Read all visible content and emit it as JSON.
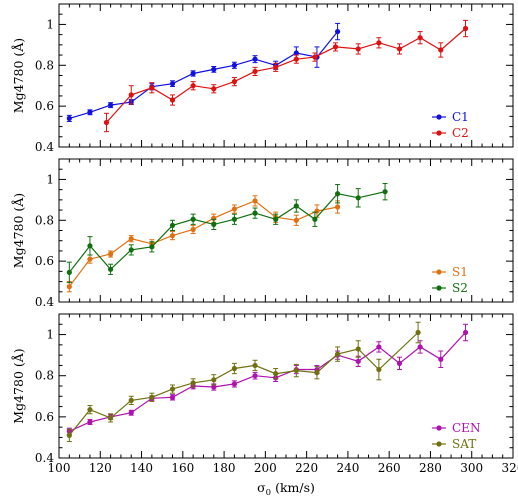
{
  "chart_data": {
    "type": "line",
    "x_axis": {
      "label_main": "σ",
      "label_sub": "0",
      "label_rest": " (km/s)",
      "range": [
        100,
        320
      ],
      "ticks": [
        100,
        120,
        140,
        160,
        180,
        200,
        220,
        240,
        260,
        280,
        300,
        320
      ],
      "minor_step": 5
    },
    "y_label": "Mg4780 (Å)",
    "panels": [
      {
        "ylim": [
          0.4,
          1.1
        ],
        "yticks": [
          0.4,
          0.6,
          0.8,
          1.0
        ],
        "ytick_labels": [
          "0.4",
          "0.6",
          "0.8",
          "1"
        ],
        "legend_position": "bottom-right",
        "series": [
          {
            "name": "C1",
            "color": "#1010e0",
            "x": [
              105,
              115,
              125,
              135,
              145,
              155,
              165,
              175,
              185,
              195,
              205,
              215,
              225,
              235
            ],
            "y": [
              0.54,
              0.57,
              0.605,
              0.62,
              0.695,
              0.71,
              0.76,
              0.78,
              0.8,
              0.83,
              0.8,
              0.86,
              0.84,
              0.965
            ],
            "err": [
              0.015,
              0.012,
              0.012,
              0.012,
              0.015,
              0.014,
              0.013,
              0.014,
              0.015,
              0.017,
              0.02,
              0.03,
              0.05,
              0.04
            ]
          },
          {
            "name": "C2",
            "color": "#e01010",
            "x": [
              123,
              135,
              145,
              155,
              165,
              175,
              185,
              195,
              205,
              215,
              224,
              234,
              245,
              255,
              265,
              275,
              285,
              297
            ],
            "y": [
              0.52,
              0.655,
              0.69,
              0.63,
              0.7,
              0.685,
              0.72,
              0.77,
              0.79,
              0.83,
              0.84,
              0.89,
              0.88,
              0.91,
              0.88,
              0.935,
              0.875,
              0.98
            ],
            "err": [
              0.045,
              0.045,
              0.025,
              0.025,
              0.02,
              0.02,
              0.02,
              0.02,
              0.02,
              0.02,
              0.02,
              0.02,
              0.025,
              0.025,
              0.025,
              0.03,
              0.035,
              0.04
            ]
          }
        ]
      },
      {
        "ylim": [
          0.4,
          1.1
        ],
        "yticks": [
          0.4,
          0.6,
          0.8,
          1.0
        ],
        "ytick_labels": [
          "0.4",
          "0.6",
          "0.8",
          "1"
        ],
        "legend_position": "bottom-right",
        "series": [
          {
            "name": "S1",
            "color": "#e07010",
            "x": [
              105,
              115,
              125,
              135,
              145,
              155,
              165,
              175,
              185,
              195,
              205,
              215,
              225,
              235
            ],
            "y": [
              0.475,
              0.61,
              0.635,
              0.71,
              0.685,
              0.725,
              0.755,
              0.81,
              0.855,
              0.895,
              0.815,
              0.8,
              0.845,
              0.865
            ],
            "err": [
              0.025,
              0.02,
              0.015,
              0.015,
              0.02,
              0.02,
              0.02,
              0.02,
              0.02,
              0.025,
              0.025,
              0.025,
              0.03,
              0.03
            ]
          },
          {
            "name": "S2",
            "color": "#107010",
            "x": [
              105,
              115,
              125,
              135,
              145,
              155,
              165,
              175,
              185,
              195,
              205,
              215,
              224,
              235,
              245,
              258
            ],
            "y": [
              0.545,
              0.675,
              0.56,
              0.655,
              0.67,
              0.775,
              0.805,
              0.78,
              0.805,
              0.835,
              0.805,
              0.87,
              0.805,
              0.93,
              0.91,
              0.94
            ],
            "err": [
              0.05,
              0.045,
              0.025,
              0.025,
              0.025,
              0.025,
              0.025,
              0.025,
              0.025,
              0.025,
              0.025,
              0.03,
              0.035,
              0.045,
              0.045,
              0.04
            ]
          }
        ]
      },
      {
        "ylim": [
          0.4,
          1.1
        ],
        "yticks": [
          0.4,
          0.6,
          0.8,
          1.0
        ],
        "ytick_labels": [
          "0.4",
          "0.6",
          "0.8",
          "1"
        ],
        "legend_position": "bottom-right",
        "series": [
          {
            "name": "CEN",
            "color": "#b010b0",
            "x": [
              105,
              115,
              125,
              135,
              145,
              155,
              165,
              175,
              185,
              195,
              205,
              215,
              225,
              235,
              245,
              255,
              265,
              275,
              285,
              297
            ],
            "y": [
              0.53,
              0.575,
              0.6,
              0.62,
              0.69,
              0.695,
              0.75,
              0.745,
              0.76,
              0.8,
              0.79,
              0.83,
              0.83,
              0.9,
              0.87,
              0.94,
              0.86,
              0.94,
              0.88,
              1.01
            ],
            "err": [
              0.015,
              0.012,
              0.012,
              0.012,
              0.012,
              0.013,
              0.014,
              0.015,
              0.015,
              0.016,
              0.018,
              0.02,
              0.02,
              0.02,
              0.025,
              0.025,
              0.03,
              0.03,
              0.04,
              0.04
            ]
          },
          {
            "name": "SAT",
            "color": "#707010",
            "x": [
              105,
              115,
              125,
              135,
              145,
              155,
              165,
              175,
              185,
              195,
              205,
              215,
              225,
              235,
              245,
              255,
              274
            ],
            "y": [
              0.51,
              0.635,
              0.595,
              0.68,
              0.695,
              0.735,
              0.765,
              0.78,
              0.835,
              0.85,
              0.81,
              0.825,
              0.815,
              0.905,
              0.93,
              0.83,
              1.01
            ],
            "err": [
              0.03,
              0.02,
              0.02,
              0.02,
              0.02,
              0.02,
              0.02,
              0.025,
              0.025,
              0.025,
              0.025,
              0.03,
              0.03,
              0.035,
              0.04,
              0.05,
              0.05
            ]
          }
        ]
      }
    ]
  }
}
